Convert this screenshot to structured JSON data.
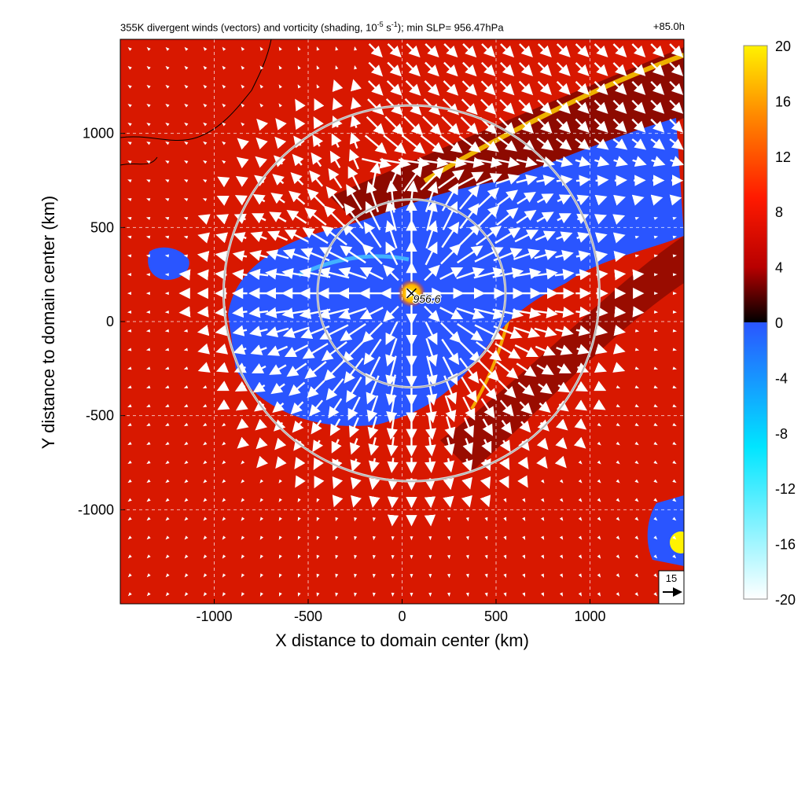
{
  "chart_data": {
    "type": "heatmap",
    "title": "355K divergent winds (vectors) and vorticity (shading, 10",
    "title_exp": "-5",
    "title_mid": " s",
    "title_exp2": "-1",
    "title_tail": "); min SLP= 956.47hPa",
    "time_label": "+85.0h",
    "xlabel": "X distance to domain center (km)",
    "ylabel": "Y distance to domain center (km)",
    "xlim": [
      -1500,
      1500
    ],
    "ylim": [
      -1500,
      1500
    ],
    "x_ticks": [
      -1000,
      -500,
      0,
      500,
      1000
    ],
    "y_ticks": [
      -1000,
      -500,
      0,
      500,
      1000
    ],
    "x_tick_labels": [
      "-1000",
      "-500",
      "0",
      "500",
      "1000"
    ],
    "y_tick_labels": [
      "-1000",
      "-500",
      "0",
      "500",
      "1000"
    ],
    "grid": true,
    "center": {
      "x": 50,
      "y": 150,
      "label": "956.6"
    },
    "range_rings_km": [
      500,
      1000
    ],
    "reference_vector": {
      "value": "15",
      "units": ""
    },
    "colorbar": {
      "range": [
        -20,
        20
      ],
      "tick_labels": [
        "20",
        "16",
        "12",
        "8",
        "4",
        "0",
        "-4",
        "-8",
        "-12",
        "-16",
        "-20"
      ],
      "colors": {
        "pos_top": "#fff200",
        "pos_high": "#ff8a00",
        "pos_mid": "#ff1a00",
        "pos_low": "#b80000",
        "zero": "#000000",
        "neg_zero": "#2a55ff",
        "neg_mid": "#00e5ff",
        "neg_bottom": "#ffffff"
      }
    }
  }
}
